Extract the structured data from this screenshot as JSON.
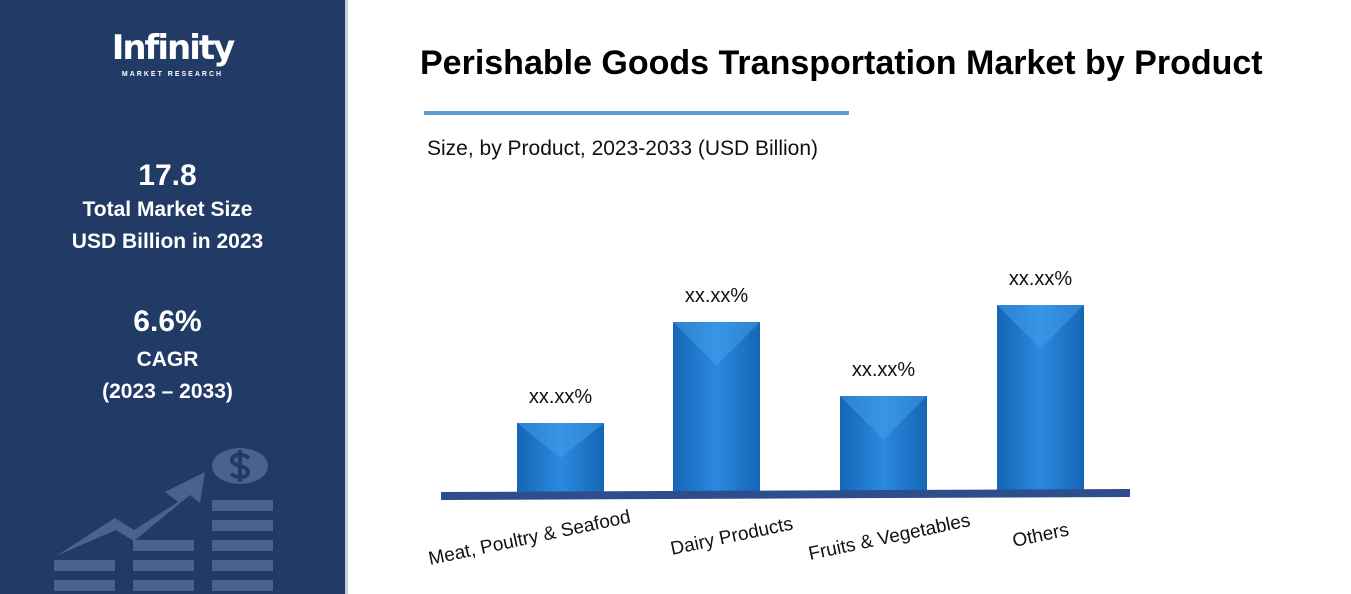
{
  "sidebar": {
    "logo": {
      "name": "Infinity",
      "tagline": "MARKET RESEARCH"
    },
    "market_size": {
      "value": "17.8",
      "label_line1": "Total Market Size",
      "label_line2": "USD Billion in 2023"
    },
    "cagr": {
      "value": "6.6%",
      "label": "CAGR",
      "period": "(2023 – 2033)"
    },
    "illustration": "growth-chart-dollar-icon"
  },
  "chart_data": {
    "type": "bar",
    "title": "Perishable Goods Transportation Market by Product",
    "subtitle": "Size, by Product, 2023-2033 (USD Billion)",
    "categories": [
      "Meat, Poultry & Seafood",
      "Dairy Products",
      "Fruits & Vegetables",
      "Others"
    ],
    "values": [
      70,
      171,
      97,
      188
    ],
    "data_labels": [
      "xx.xx%",
      "xx.xx%",
      "xx.xx%",
      "xx.xx%"
    ],
    "bar_color": "#1b75c9",
    "axis_color": "#2e4d8c",
    "grid": false,
    "y_axis_shown": false
  }
}
